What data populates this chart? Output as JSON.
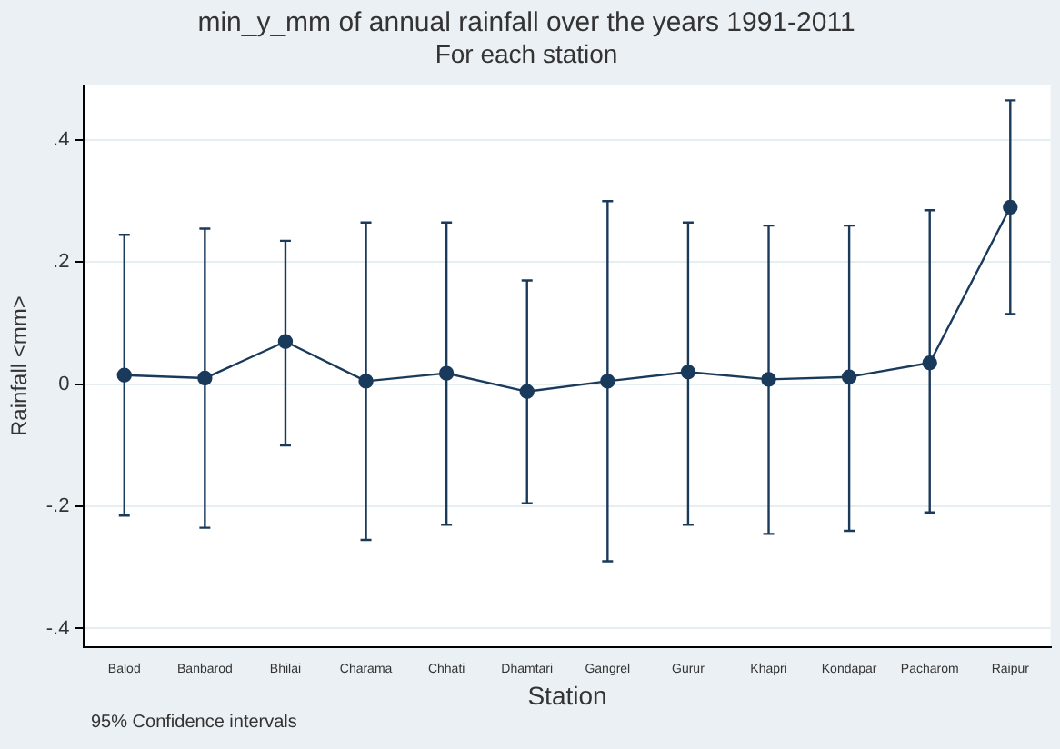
{
  "chart_data": {
    "type": "line",
    "title": "min_y_mm of annual rainfall over the years 1991-2011",
    "subtitle": "For each station",
    "xlabel": "Station",
    "ylabel": "Rainfall <mm>",
    "categories": [
      "Balod",
      "Banbarod",
      "Bhilai",
      "Charama",
      "Chhati",
      "Dhamtari",
      "Gangrel",
      "Gurur",
      "Khapri",
      "Kondapar",
      "Pacharom",
      "Raipur"
    ],
    "series": [
      {
        "color": "#1a3a5c",
        "values": [
          0.015,
          0.01,
          0.07,
          0.005,
          0.018,
          -0.012,
          0.005,
          0.02,
          0.008,
          0.012,
          0.035,
          0.29
        ],
        "errors": [
          [
            -0.215,
            0.245
          ],
          [
            -0.235,
            0.255
          ],
          [
            -0.1,
            0.235
          ],
          [
            -0.255,
            0.265
          ],
          [
            -0.23,
            0.265
          ],
          [
            -0.195,
            0.17
          ],
          [
            -0.29,
            0.3
          ],
          [
            -0.23,
            0.265
          ],
          [
            -0.245,
            0.26
          ],
          [
            -0.24,
            0.26
          ],
          [
            -0.21,
            0.285
          ],
          [
            0.115,
            0.465
          ]
        ]
      }
    ],
    "ylim": [
      -0.43,
      0.49
    ],
    "yticks": [
      {
        "value": -0.4,
        "label": "-.4"
      },
      {
        "value": -0.2,
        "label": "-.2"
      },
      0,
      {
        "value": 0.2,
        "label": ".2"
      },
      {
        "value": 0.4,
        "label": ".4"
      }
    ],
    "grid": "y",
    "legend": false,
    "marker": "circle",
    "line_style": "solid",
    "annotations": [
      "95% Confidence intervals"
    ]
  }
}
